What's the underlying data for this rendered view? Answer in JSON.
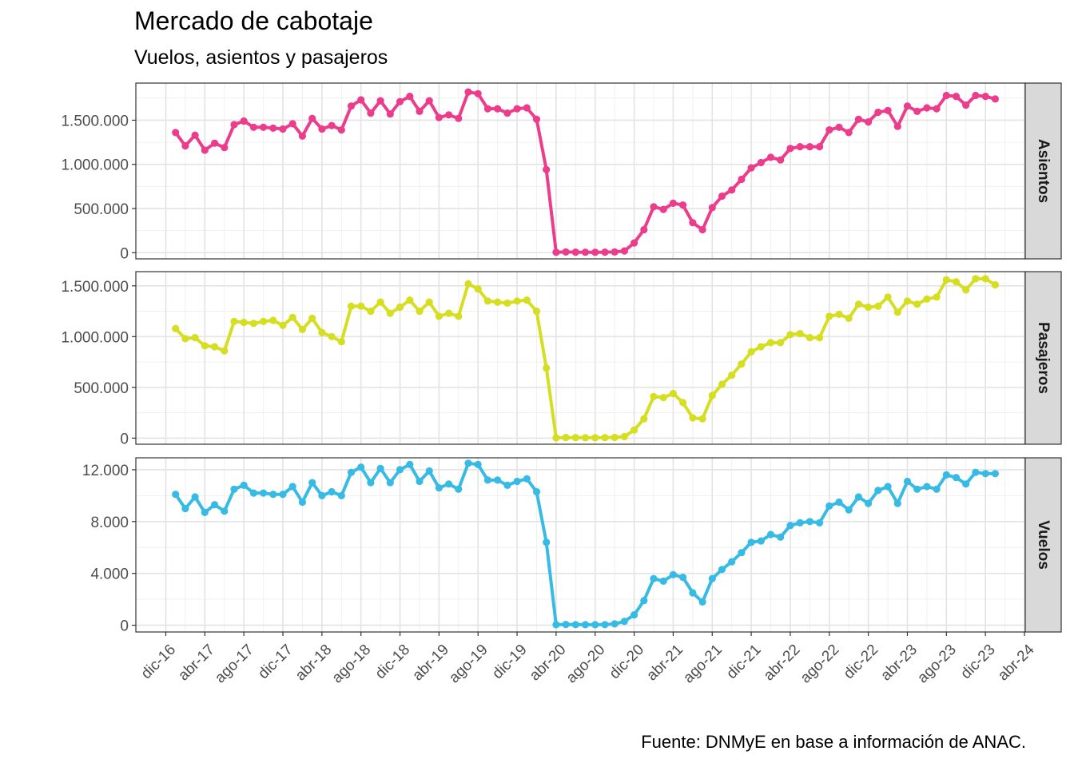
{
  "title": "Mercado de cabotaje",
  "subtitle": "Vuelos, asientos y pasajeros",
  "caption": "Fuente: DNMyE en base a información de ANAC.",
  "chart_data": {
    "type": "line",
    "facets": "rows",
    "grid": true,
    "x_ticks": [
      "dic-16",
      "abr-17",
      "ago-17",
      "dic-17",
      "abr-18",
      "ago-18",
      "dic-18",
      "abr-19",
      "ago-19",
      "dic-19",
      "abr-20",
      "ago-20",
      "dic-20",
      "abr-21",
      "ago-21",
      "dic-21",
      "abr-22",
      "ago-22",
      "dic-22",
      "abr-23",
      "ago-23",
      "dic-23",
      "abr-24"
    ],
    "x_start": "ene-17",
    "x_end": "dic-23",
    "panels": [
      {
        "name": "Asientos",
        "color": "#ec3d8c",
        "ylim": [
          -70000,
          1920000
        ],
        "yticks": [
          0,
          500000,
          1000000,
          1500000
        ],
        "yticklabels": [
          "0",
          "500.000",
          "1.000.000",
          "1.500.000"
        ],
        "values": [
          1360000,
          1210000,
          1330000,
          1160000,
          1240000,
          1190000,
          1450000,
          1490000,
          1420000,
          1420000,
          1410000,
          1400000,
          1460000,
          1320000,
          1520000,
          1400000,
          1440000,
          1390000,
          1660000,
          1730000,
          1580000,
          1720000,
          1570000,
          1710000,
          1770000,
          1600000,
          1720000,
          1530000,
          1560000,
          1520000,
          1820000,
          1800000,
          1630000,
          1630000,
          1580000,
          1630000,
          1640000,
          1510000,
          940000,
          5000,
          8000,
          6000,
          5000,
          5000,
          6000,
          8000,
          20000,
          110000,
          260000,
          520000,
          490000,
          560000,
          540000,
          340000,
          260000,
          510000,
          640000,
          710000,
          830000,
          960000,
          1020000,
          1080000,
          1050000,
          1180000,
          1200000,
          1200000,
          1200000,
          1390000,
          1420000,
          1360000,
          1510000,
          1480000,
          1590000,
          1610000,
          1430000,
          1660000,
          1600000,
          1640000,
          1630000,
          1780000,
          1770000,
          1670000,
          1780000,
          1770000,
          1740000
        ]
      },
      {
        "name": "Pasajeros",
        "color": "#d6de22",
        "ylim": [
          -60000,
          1640000
        ],
        "yticks": [
          0,
          500000,
          1000000,
          1500000
        ],
        "yticklabels": [
          "0",
          "500.000",
          "1.000.000",
          "1.500.000"
        ],
        "values": [
          1080000,
          980000,
          990000,
          910000,
          900000,
          860000,
          1150000,
          1140000,
          1130000,
          1150000,
          1160000,
          1110000,
          1190000,
          1070000,
          1180000,
          1040000,
          1000000,
          950000,
          1300000,
          1300000,
          1250000,
          1340000,
          1230000,
          1290000,
          1360000,
          1250000,
          1340000,
          1200000,
          1230000,
          1200000,
          1520000,
          1470000,
          1350000,
          1340000,
          1330000,
          1350000,
          1360000,
          1250000,
          690000,
          3000,
          6000,
          5000,
          4000,
          4000,
          5000,
          7000,
          15000,
          80000,
          190000,
          410000,
          400000,
          440000,
          350000,
          200000,
          190000,
          420000,
          530000,
          620000,
          730000,
          850000,
          900000,
          940000,
          940000,
          1020000,
          1030000,
          990000,
          990000,
          1200000,
          1220000,
          1180000,
          1320000,
          1290000,
          1300000,
          1390000,
          1240000,
          1350000,
          1320000,
          1370000,
          1390000,
          1560000,
          1540000,
          1460000,
          1570000,
          1570000,
          1510000
        ]
      },
      {
        "name": "Vuelos",
        "color": "#37bbe4",
        "ylim": [
          -520,
          12920
        ],
        "yticks": [
          0,
          4000,
          8000,
          12000
        ],
        "yticklabels": [
          "0",
          "4.000",
          "8.000",
          "12.000"
        ],
        "values": [
          10100,
          9000,
          9900,
          8700,
          9300,
          8800,
          10500,
          10800,
          10200,
          10200,
          10100,
          10100,
          10700,
          9500,
          11000,
          10000,
          10300,
          10000,
          11800,
          12200,
          11000,
          12100,
          11000,
          12000,
          12400,
          11100,
          11900,
          10600,
          10900,
          10500,
          12500,
          12400,
          11200,
          11200,
          10800,
          11100,
          11300,
          10300,
          6400,
          40,
          60,
          50,
          40,
          40,
          50,
          100,
          300,
          800,
          1900,
          3600,
          3400,
          3900,
          3700,
          2500,
          1800,
          3600,
          4300,
          4900,
          5600,
          6400,
          6500,
          7000,
          6800,
          7700,
          7900,
          8000,
          7900,
          9200,
          9500,
          8900,
          9900,
          9400,
          10400,
          10700,
          9400,
          11100,
          10500,
          10700,
          10500,
          11600,
          11400,
          10900,
          11800,
          11700,
          11700
        ]
      }
    ]
  }
}
